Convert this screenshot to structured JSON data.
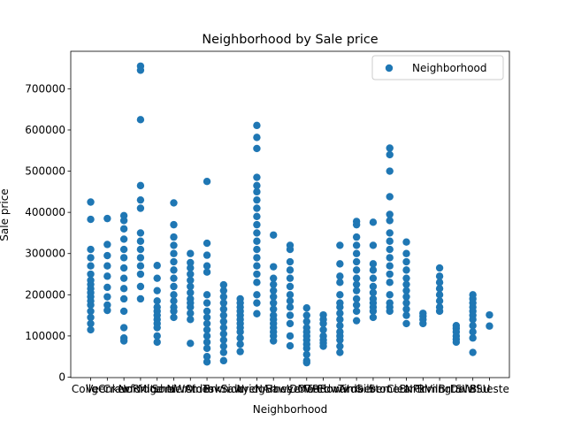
{
  "chart_data": {
    "type": "scatter",
    "title": "Neighborhood by Sale price",
    "x_label": "Neighborhood",
    "y_label": "Sale price",
    "categories": [
      "CollgCr",
      "Veenker",
      "Crawfor",
      "NoRidge",
      "Mitchel",
      "Somerst",
      "NWAmes",
      "OldTown",
      "BrkSide",
      "Sawyer",
      "NridgHt",
      "NAmes",
      "SawyerW",
      "IDOTRR",
      "MeadowV",
      "Edwards",
      "Timber",
      "Gilbert",
      "StoneBr",
      "ClearCr",
      "NPkVill",
      "Blmngtn",
      "BrDale",
      "SWISU",
      "Blueste"
    ],
    "series": [
      {
        "name": "Neighborhood",
        "color": "#1f77b4",
        "values": [
          [
            425000,
            383000,
            310000,
            290000,
            270000,
            250000,
            235000,
            225000,
            215000,
            205000,
            195000,
            185000,
            175000,
            160000,
            145000,
            130000,
            115000
          ],
          [
            385000,
            322000,
            295000,
            270000,
            245000,
            218000,
            195000,
            175000,
            162000
          ],
          [
            392000,
            380000,
            360000,
            335000,
            310000,
            290000,
            265000,
            240000,
            215000,
            190000,
            160000,
            120000,
            95000,
            88000
          ],
          [
            755000,
            745000,
            625000,
            465000,
            430000,
            410000,
            350000,
            330000,
            310000,
            290000,
            270000,
            250000,
            220000,
            190000
          ],
          [
            271000,
            240000,
            210000,
            185000,
            170000,
            160000,
            150000,
            140000,
            130000,
            120000,
            100000,
            85000
          ],
          [
            423000,
            370000,
            340000,
            320000,
            300000,
            280000,
            260000,
            240000,
            220000,
            200000,
            185000,
            170000,
            160000,
            145000
          ],
          [
            300000,
            278000,
            265000,
            250000,
            235000,
            220000,
            205000,
            190000,
            180000,
            170000,
            155000,
            140000,
            82000
          ],
          [
            475000,
            325000,
            296000,
            270000,
            255000,
            200000,
            180000,
            160000,
            145000,
            130000,
            115000,
            100000,
            85000,
            70000,
            50000,
            37000
          ],
          [
            224000,
            210000,
            195000,
            180000,
            165000,
            150000,
            135000,
            120000,
            105000,
            90000,
            75000,
            60000,
            40000
          ],
          [
            190000,
            180000,
            170000,
            160000,
            150000,
            140000,
            130000,
            120000,
            110000,
            95000,
            80000,
            62000
          ],
          [
            611000,
            582000,
            555000,
            485000,
            465000,
            450000,
            430000,
            410000,
            390000,
            370000,
            350000,
            330000,
            310000,
            290000,
            270000,
            250000,
            230000,
            200000,
            180000,
            154000
          ],
          [
            345000,
            268000,
            240000,
            225000,
            210000,
            195000,
            180000,
            165000,
            150000,
            140000,
            130000,
            120000,
            110000,
            100000,
            88000
          ],
          [
            320000,
            310000,
            280000,
            260000,
            240000,
            220000,
            200000,
            185000,
            170000,
            150000,
            130000,
            100000,
            76000
          ],
          [
            168000,
            150000,
            135000,
            120000,
            110000,
            100000,
            90000,
            80000,
            70000,
            55000,
            40000,
            35000
          ],
          [
            151000,
            140000,
            130000,
            115000,
            100000,
            90000,
            83000,
            75000
          ],
          [
            320000,
            275000,
            245000,
            230000,
            200000,
            180000,
            170000,
            155000,
            140000,
            125000,
            110000,
            100000,
            90000,
            75000,
            60000
          ],
          [
            378000,
            370000,
            340000,
            320000,
            300000,
            280000,
            260000,
            240000,
            225000,
            210000,
            190000,
            175000,
            160000,
            137000
          ],
          [
            376000,
            320000,
            275000,
            260000,
            240000,
            220000,
            205000,
            190000,
            180000,
            170000,
            160000,
            145000
          ],
          [
            556000,
            540000,
            500000,
            438000,
            395000,
            380000,
            350000,
            330000,
            310000,
            290000,
            270000,
            250000,
            230000,
            200000,
            180000,
            170000,
            160000
          ],
          [
            328000,
            300000,
            280000,
            260000,
            240000,
            225000,
            210000,
            195000,
            180000,
            165000,
            150000,
            130000
          ],
          [
            155000,
            148000,
            140000,
            130000
          ],
          [
            265000,
            245000,
            230000,
            215000,
            200000,
            185000,
            170000,
            160000
          ],
          [
            125000,
            118000,
            110000,
            100000,
            92000,
            85000
          ],
          [
            200000,
            190000,
            180000,
            170000,
            160000,
            150000,
            140000,
            125000,
            110000,
            95000,
            60000
          ],
          [
            151000,
            124000
          ]
        ]
      }
    ],
    "xlim": [
      -1.2,
      25.2
    ],
    "ylim": [
      -1100,
      791000
    ],
    "yticks": [
      0,
      100000,
      200000,
      300000,
      400000,
      500000,
      600000,
      700000
    ],
    "legend": "upper right"
  }
}
